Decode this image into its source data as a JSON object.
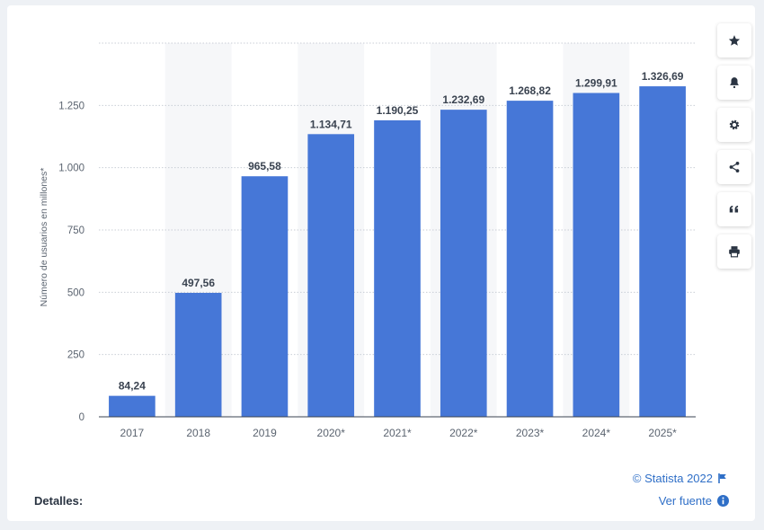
{
  "chart_data": {
    "type": "bar",
    "categories": [
      "2017",
      "2018",
      "2019",
      "2020*",
      "2021*",
      "2022*",
      "2023*",
      "2024*",
      "2025*"
    ],
    "values": [
      84.24,
      497.56,
      965.58,
      1134.71,
      1190.25,
      1232.69,
      1268.82,
      1299.91,
      1326.69
    ],
    "data_labels": [
      "84,24",
      "497,56",
      "965,58",
      "1.134,71",
      "1.190,25",
      "1.232,69",
      "1.268,82",
      "1.299,91",
      "1.326,69"
    ],
    "ylabel": "Número de usuarios en millones*",
    "yticks": [
      0,
      250,
      500,
      750,
      1000,
      1250
    ],
    "ytick_labels": [
      "0",
      "250",
      "500",
      "750",
      "1.000",
      "1.250"
    ],
    "ylim": [
      0,
      1500
    ],
    "grid": true,
    "bar_color": "#4677d7"
  },
  "footer": {
    "copyright": "© Statista 2022",
    "view_source": "Ver fuente",
    "details": "Detalles:"
  },
  "sidebar": {
    "buttons": [
      "star-icon",
      "bell-icon",
      "gear-icon",
      "share-icon",
      "quote-icon",
      "print-icon"
    ]
  }
}
